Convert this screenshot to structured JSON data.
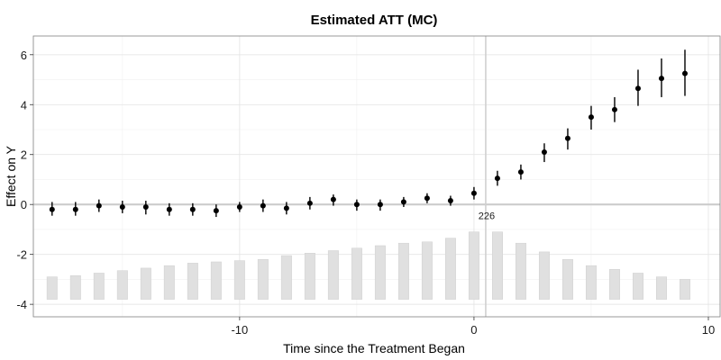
{
  "chart_data": {
    "type": "scatter",
    "title": "Estimated ATT (MC)",
    "xlabel": "Time since the Treatment Began",
    "ylabel": "Effect on Y",
    "xlim": [
      -18.8,
      10.5
    ],
    "ylim": [
      -4.5,
      6.75
    ],
    "x_ticks": [
      -10,
      0,
      10
    ],
    "y_ticks": [
      -4,
      -2,
      0,
      2,
      4,
      6
    ],
    "grid": true,
    "vline_x": 0.5,
    "hline_y": 0,
    "annotation": {
      "text": "226",
      "x": 0.5,
      "y": -0.45
    },
    "series": [
      {
        "x": [
          -18,
          -17,
          -16,
          -15,
          -14,
          -13,
          -12,
          -11,
          -10,
          -9,
          -8,
          -7,
          -6,
          -5,
          -4,
          -3,
          -2,
          -1,
          0,
          1,
          2,
          3,
          4,
          5,
          6,
          7,
          8,
          9
        ],
        "y": [
          -0.2,
          -0.2,
          -0.05,
          -0.1,
          -0.1,
          -0.2,
          -0.2,
          -0.25,
          -0.1,
          -0.05,
          -0.15,
          0.05,
          0.2,
          0.0,
          0.0,
          0.1,
          0.25,
          0.15,
          0.45,
          1.05,
          1.3,
          2.1,
          2.65,
          3.5,
          3.8,
          4.65,
          5.05,
          5.25
        ],
        "lower": [
          -0.45,
          -0.45,
          -0.3,
          -0.35,
          -0.4,
          -0.45,
          -0.45,
          -0.5,
          -0.3,
          -0.3,
          -0.4,
          -0.2,
          -0.05,
          -0.25,
          -0.25,
          -0.1,
          0.05,
          -0.05,
          0.2,
          0.75,
          1.0,
          1.7,
          2.2,
          3.0,
          3.3,
          3.95,
          4.3,
          4.35
        ],
        "upper": [
          0.1,
          0.1,
          0.2,
          0.15,
          0.15,
          0.05,
          0.05,
          0.0,
          0.1,
          0.2,
          0.1,
          0.3,
          0.4,
          0.2,
          0.2,
          0.3,
          0.45,
          0.35,
          0.7,
          1.35,
          1.6,
          2.45,
          3.05,
          3.95,
          4.3,
          5.4,
          5.85,
          6.2
        ]
      }
    ],
    "bars": {
      "base": -3.8,
      "x": [
        -18,
        -17,
        -16,
        -15,
        -14,
        -13,
        -12,
        -11,
        -10,
        -9,
        -8,
        -7,
        -6,
        -5,
        -4,
        -3,
        -2,
        -1,
        0,
        1,
        2,
        3,
        4,
        5,
        6,
        7,
        8,
        9
      ],
      "top": [
        -2.9,
        -2.85,
        -2.75,
        -2.65,
        -2.55,
        -2.45,
        -2.35,
        -2.3,
        -2.25,
        -2.2,
        -2.05,
        -1.95,
        -1.85,
        -1.75,
        -1.65,
        -1.55,
        -1.5,
        -1.35,
        -1.1,
        -1.1,
        -1.55,
        -1.9,
        -2.2,
        -2.45,
        -2.6,
        -2.75,
        -2.9,
        -3.0
      ]
    }
  }
}
